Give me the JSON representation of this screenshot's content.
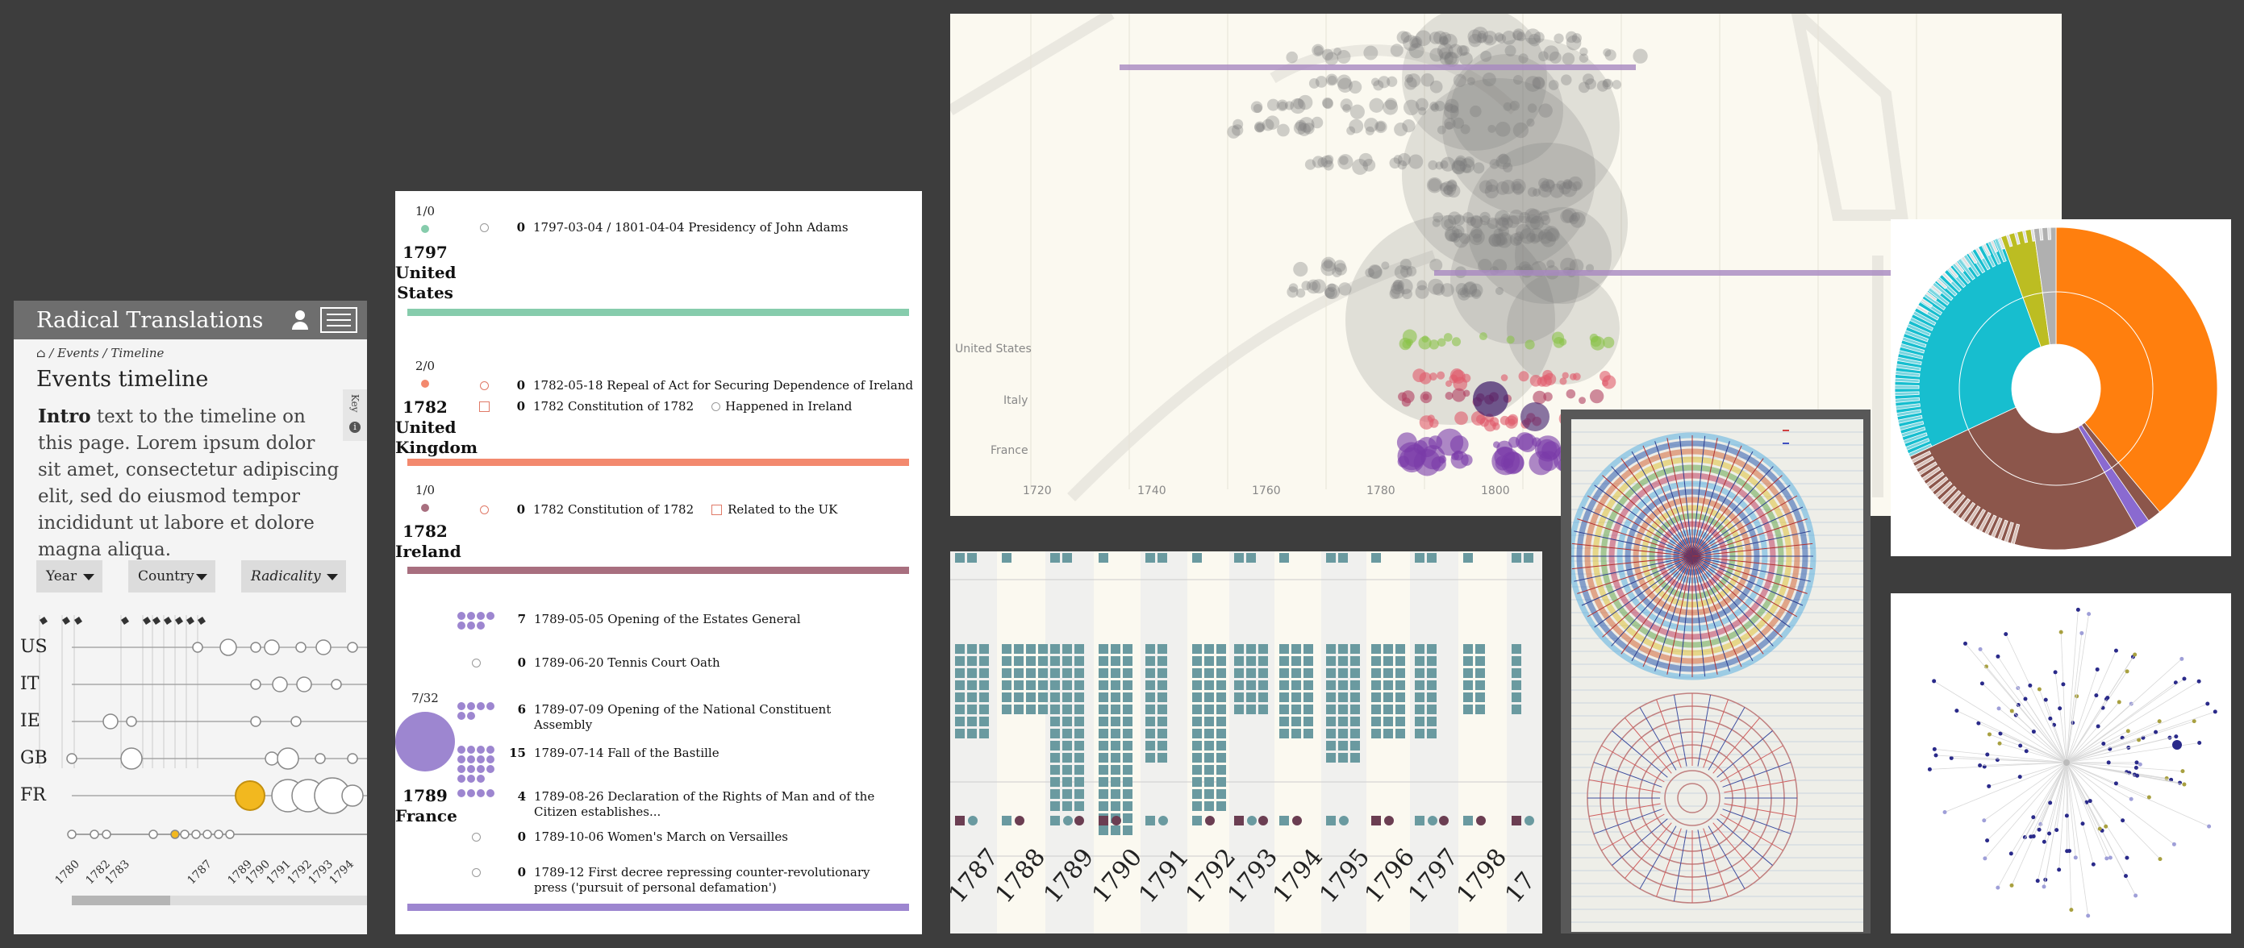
{
  "mobile": {
    "app_title": "Radical Translations",
    "breadcrumb": "/ Events / Timeline",
    "page_title": "Events timeline",
    "intro_bold": "Intro",
    "intro_rest": " text to the timeline on this page. Lorem ipsum dolor sit amet, consectetur adipiscing elit, sed do eiusmod tempor incididunt ut labore et dolore magna aliqua.",
    "key_tab": "Key",
    "info_glyph": "i",
    "filters": {
      "year": "Year",
      "country": "Country",
      "radicality": "Radicality"
    },
    "countries": [
      "US",
      "IT",
      "IE",
      "GB",
      "FR"
    ],
    "axis_years": [
      "1780",
      "1782",
      "1783",
      "1787",
      "1789",
      "1790",
      "1791",
      "1792",
      "1793",
      "1794"
    ],
    "colors": {
      "header": "#6e6e6e",
      "highlight": "#f2b81f"
    }
  },
  "desktop": {
    "events": [
      {
        "count": "1/0",
        "year": "1797",
        "country": "United States",
        "dot_color": "#86ccac",
        "bar_color": "#86ccac",
        "rows": [
          {
            "num": "0",
            "text": "1797-03-04 / 1801-04-04 Presidency of John Adams"
          }
        ]
      },
      {
        "count": "2/0",
        "year": "1782",
        "country": "United Kingdom",
        "dot_color": "#f3896e",
        "bar_color": "#f3896e",
        "rows": [
          {
            "num": "0",
            "text": "1782-05-18 Repeal of Act for Securing Dependence of Ireland"
          },
          {
            "num": "0",
            "text": "1782 Constitution of 1782",
            "tag": "Happened in Ireland"
          }
        ]
      },
      {
        "count": "1/0",
        "year": "1782",
        "country": "Ireland",
        "dot_color": "#a86f7f",
        "bar_color": "#a86f7f",
        "rows": [
          {
            "num": "0",
            "text": "1782 Constitution of 1782",
            "tag": "Related to the UK"
          }
        ]
      },
      {
        "count": "7/32",
        "year": "1789",
        "country": "France",
        "dot_color": "#9d86d0",
        "bar_color": "#9d86d0",
        "rows": [
          {
            "num": "7",
            "text": "1789-05-05 Opening of the Estates General"
          },
          {
            "num": "0",
            "text": "1789-06-20 Tennis Court Oath"
          },
          {
            "num": "6",
            "text": "1789-07-09 Opening of the National Constituent Assembly"
          },
          {
            "num": "15",
            "text": "1789-07-14 Fall of the Bastille"
          },
          {
            "num": "4",
            "text": "1789-08-26 Declaration of the Rights of Man and of the Citizen establishes..."
          },
          {
            "num": "0",
            "text": "1789-10-06 Women's March on Versailles"
          },
          {
            "num": "0",
            "text": "1789-12 First decree repressing counter-revolutionary press ('pursuit of personal defamation')"
          }
        ]
      }
    ]
  },
  "swarm": {
    "y_labels": [
      "United States",
      "Italy",
      "France"
    ],
    "x_ticks": [
      "1720",
      "1740",
      "1760",
      "1780",
      "1800"
    ],
    "colors": {
      "purple": "#7a3aa8",
      "grey": "#8a8a8a",
      "green": "#8bc34a",
      "red": "#e05a6a"
    }
  },
  "grid": {
    "years": [
      "1787",
      "1788",
      "1789",
      "1790",
      "1791",
      "1792",
      "1793",
      "1794",
      "1795",
      "1796",
      "1797",
      "1798",
      "17"
    ],
    "colors": {
      "teal": "#6a9aa0",
      "maroon": "#6b3e52"
    }
  },
  "sunburst": {
    "colors": {
      "orange": "#ff7f0e",
      "cyan": "#17becf",
      "brown": "#8c564b",
      "olive": "#bcbd22"
    }
  },
  "radial": {
    "colors": {
      "navy": "#2a2a8a",
      "olive": "#a8a040",
      "lilac": "#9f9fd8"
    }
  }
}
